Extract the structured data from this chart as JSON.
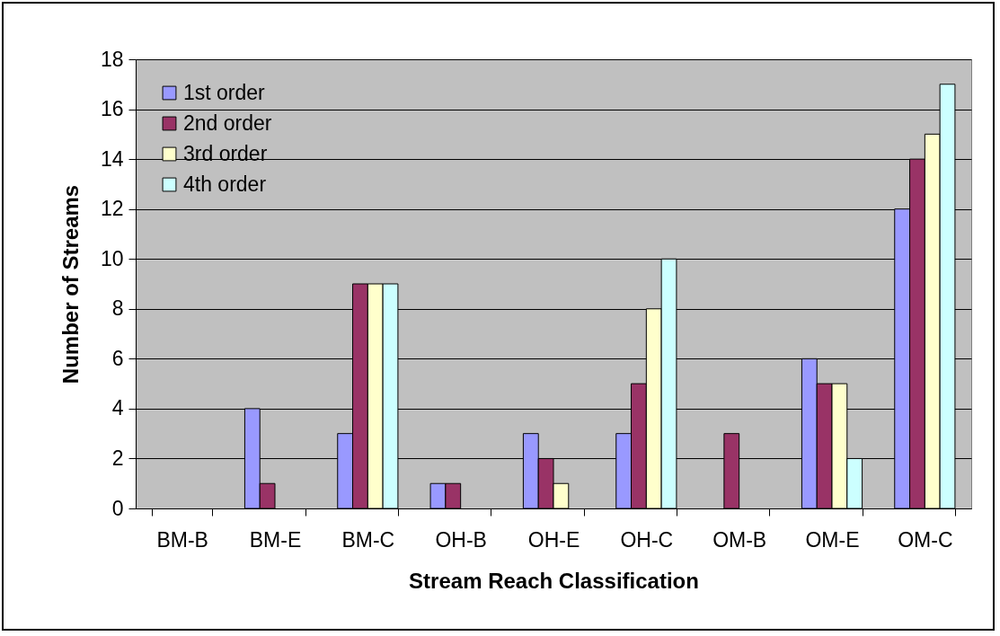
{
  "chart_data": {
    "type": "bar",
    "xlabel": "Stream Reach Classification",
    "ylabel": "Number of Streams",
    "categories": [
      "BM-B",
      "BM-E",
      "BM-C",
      "OH-B",
      "OH-E",
      "OH-C",
      "OM-B",
      "OM-E",
      "OM-C"
    ],
    "series": [
      {
        "name": "1st order",
        "color": "#9999ff",
        "values": [
          0,
          4,
          3,
          1,
          3,
          3,
          0,
          6,
          12
        ]
      },
      {
        "name": "2nd order",
        "color": "#993366",
        "values": [
          0,
          1,
          9,
          1,
          2,
          5,
          3,
          5,
          14
        ]
      },
      {
        "name": "3rd order",
        "color": "#ffffcc",
        "values": [
          0,
          0,
          9,
          0,
          1,
          8,
          0,
          5,
          15
        ]
      },
      {
        "name": "4th order",
        "color": "#ccffff",
        "values": [
          0,
          0,
          9,
          0,
          0,
          10,
          0,
          2,
          17
        ]
      }
    ],
    "ylim": [
      0,
      18
    ],
    "yticks": [
      0,
      2,
      4,
      6,
      8,
      10,
      12,
      14,
      16,
      18
    ],
    "grid": "y",
    "legend": "top left"
  }
}
